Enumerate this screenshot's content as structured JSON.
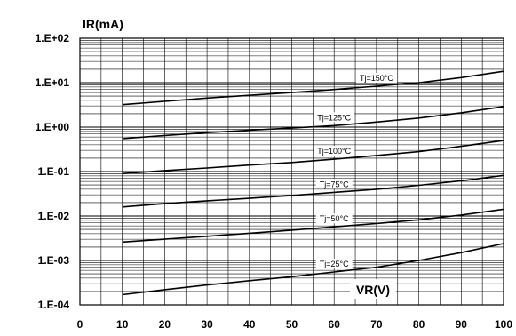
{
  "chart_data": {
    "type": "line",
    "ylabel": "IR(mA)",
    "xlabel": "VR(V)",
    "x_scale": "linear",
    "y_scale": "log",
    "xlim": [
      0,
      100
    ],
    "ylim": [
      0.0001,
      100
    ],
    "grid": true,
    "x_ticks": [
      {
        "value": 0,
        "label": "0"
      },
      {
        "value": 10,
        "label": "10"
      },
      {
        "value": 20,
        "label": "20"
      },
      {
        "value": 30,
        "label": "30"
      },
      {
        "value": 40,
        "label": "40"
      },
      {
        "value": 50,
        "label": "50"
      },
      {
        "value": 60,
        "label": "60"
      },
      {
        "value": 70,
        "label": "70"
      },
      {
        "value": 80,
        "label": "80"
      },
      {
        "value": 90,
        "label": "90"
      },
      {
        "value": 100,
        "label": "100"
      }
    ],
    "y_ticks": [
      {
        "value": 0.0001,
        "label": "1.E-04"
      },
      {
        "value": 0.001,
        "label": "1.E-03"
      },
      {
        "value": 0.01,
        "label": "1.E-02"
      },
      {
        "value": 0.1,
        "label": "1.E-01"
      },
      {
        "value": 1,
        "label": "1.E+00"
      },
      {
        "value": 10,
        "label": "1.E+01"
      },
      {
        "value": 100,
        "label": "1.E+02"
      }
    ],
    "x": [
      10,
      20,
      30,
      40,
      50,
      60,
      70,
      80,
      90,
      100
    ],
    "series": [
      {
        "name": "Tj=150°C",
        "values": [
          3.2,
          3.8,
          4.5,
          5.2,
          6.0,
          7.0,
          8.3,
          10.0,
          13.0,
          18.0
        ]
      },
      {
        "name": "Tj=125°C",
        "values": [
          0.55,
          0.65,
          0.75,
          0.85,
          0.95,
          1.08,
          1.3,
          1.6,
          2.1,
          2.9
        ]
      },
      {
        "name": "Tj=100°C",
        "values": [
          0.09,
          0.105,
          0.12,
          0.14,
          0.16,
          0.19,
          0.23,
          0.28,
          0.37,
          0.5
        ]
      },
      {
        "name": "Tj=75°C",
        "values": [
          0.016,
          0.019,
          0.022,
          0.025,
          0.029,
          0.034,
          0.04,
          0.049,
          0.062,
          0.082
        ]
      },
      {
        "name": "Tj=50°C",
        "values": [
          0.0026,
          0.003,
          0.0035,
          0.0041,
          0.0048,
          0.0057,
          0.0068,
          0.0082,
          0.0105,
          0.0142
        ]
      },
      {
        "name": "Tj=25°C",
        "values": [
          0.00017,
          0.00022,
          0.00028,
          0.00035,
          0.00043,
          0.00055,
          0.0007,
          0.001,
          0.0015,
          0.0024
        ]
      }
    ],
    "series_label_x": [
      70,
      60,
      60,
      60,
      60,
      60
    ]
  }
}
